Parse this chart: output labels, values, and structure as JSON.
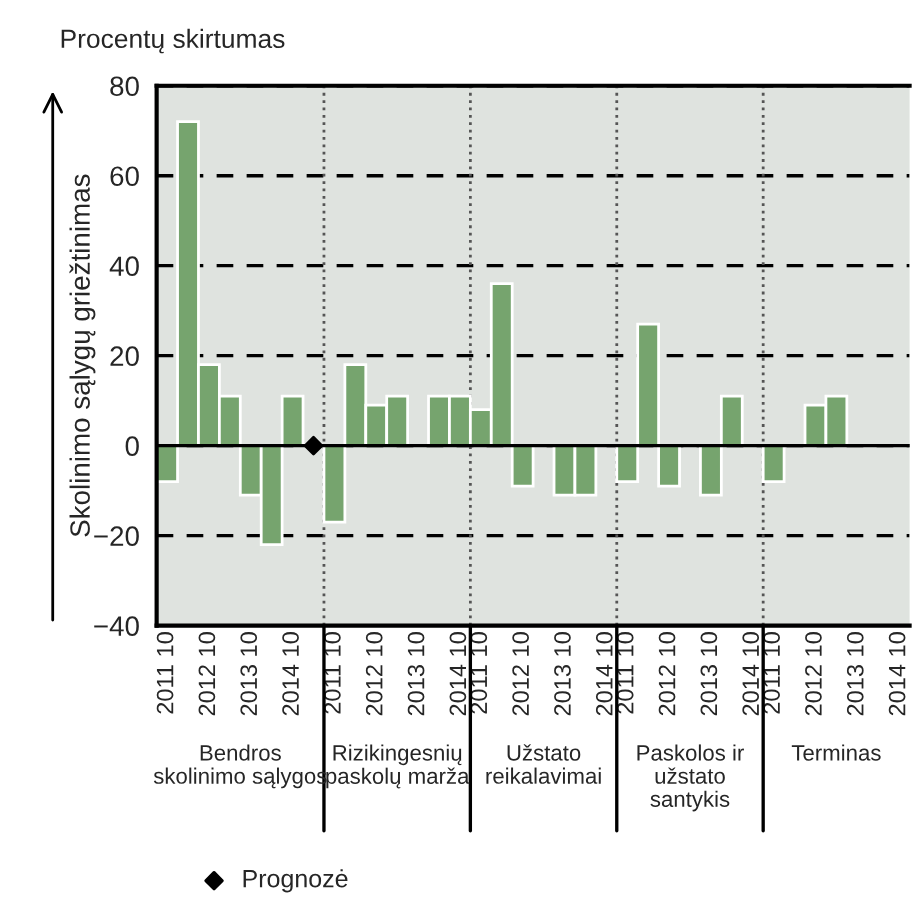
{
  "chart_data": {
    "type": "bar",
    "title": "Procentų skirtumas",
    "ylabel": "Skolinimo sąlygų griežtinimas",
    "categories": [
      "2011 10",
      null,
      "2012 10",
      null,
      "2013 10",
      null,
      "2014 10",
      null,
      "2011 10",
      null,
      "2012 10",
      null,
      "2013 10",
      null,
      "2014 10",
      "2011 10",
      null,
      "2012 10",
      null,
      "2013 10",
      null,
      "2014 10",
      "2011 10",
      null,
      "2012 10",
      null,
      "2013 10",
      null,
      "2014 10",
      "2011 10",
      null,
      "2012 10",
      null,
      "2013 10",
      null,
      "2014 10"
    ],
    "series": [
      {
        "color": "#76a46e",
        "values": [
          -8,
          72,
          18,
          11,
          -11,
          -22,
          11,
          null,
          -17,
          18,
          9,
          11,
          null,
          11,
          11,
          8,
          36,
          -9,
          null,
          -11,
          -11,
          null,
          -8,
          27,
          -9,
          null,
          -11,
          11,
          null,
          -8,
          null,
          9,
          11,
          null,
          null,
          null
        ]
      },
      {
        "type": "scatter",
        "name": "Prognozė",
        "color": "#000000",
        "values": [
          null,
          null,
          null,
          null,
          null,
          null,
          null,
          0,
          null,
          null,
          null,
          null,
          null,
          null,
          null,
          null,
          null,
          null,
          null,
          null,
          null,
          null,
          null,
          null,
          null,
          null,
          null,
          null,
          null,
          null,
          null,
          null,
          null,
          null,
          null,
          null
        ]
      }
    ],
    "annotations": [
      "Bendros\nskolinimo sąlygos",
      "Rizikingesnių\npaskolų marža",
      "Užstato\nreikalavimai",
      "Paskolos ir\nužstato\nsantykis",
      "Terminas"
    ],
    "ylim": [
      -40,
      80
    ],
    "yticks": [
      80,
      60,
      40,
      20,
      0,
      {
        "value": -20,
        "label": "−20"
      },
      {
        "value": -40,
        "label": "−40"
      }
    ],
    "grid": "y",
    "legend": "bottom",
    "marker": "diamond"
  }
}
